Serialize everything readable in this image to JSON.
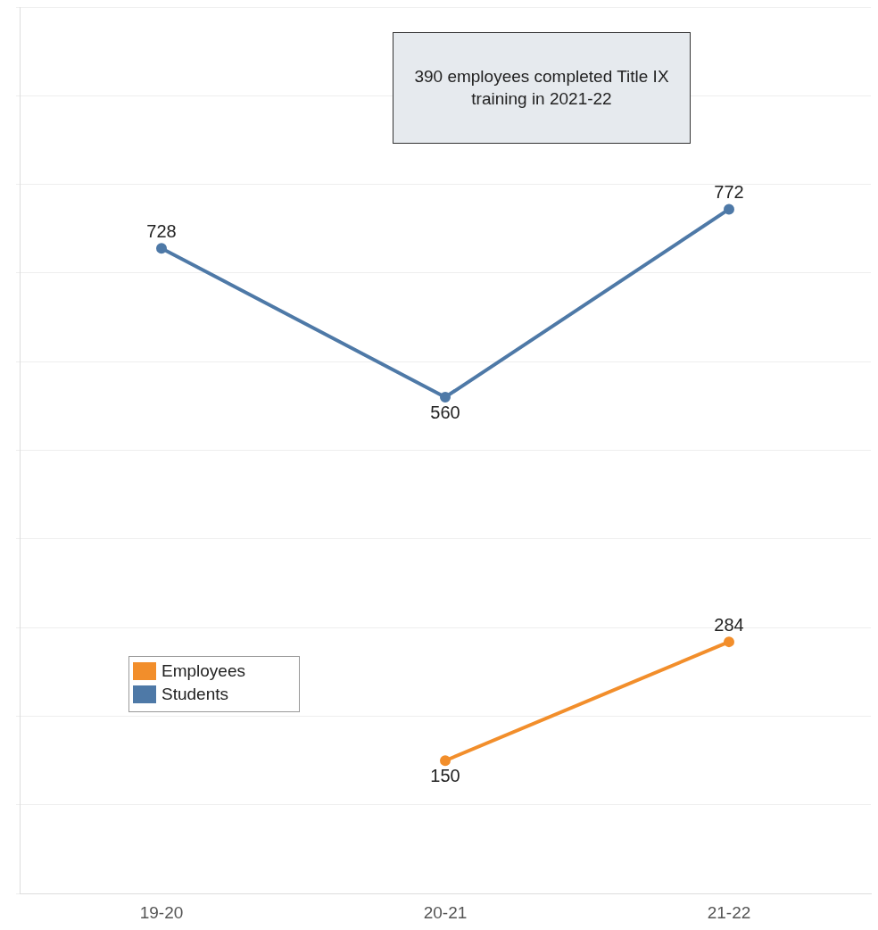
{
  "chart_data": {
    "type": "line",
    "categories": [
      "19-20",
      "20-21",
      "21-22"
    ],
    "series": [
      {
        "name": "Employees",
        "color": "#f28e2b",
        "values": [
          null,
          150,
          284
        ]
      },
      {
        "name": "Students",
        "color": "#4e79a7",
        "values": [
          728,
          560,
          772
        ]
      }
    ],
    "ylim": [
      0,
      1000
    ],
    "yticks": [
      0,
      100,
      200,
      300,
      400,
      500,
      600,
      700,
      800,
      900,
      1000
    ],
    "tick_labels": "x",
    "grid": "y",
    "legend": "bottom left",
    "marker": "circle",
    "line_style": "solid",
    "data_labels": true,
    "annotations": [
      "390 employees completed Title IX training in 2021-22"
    ]
  }
}
